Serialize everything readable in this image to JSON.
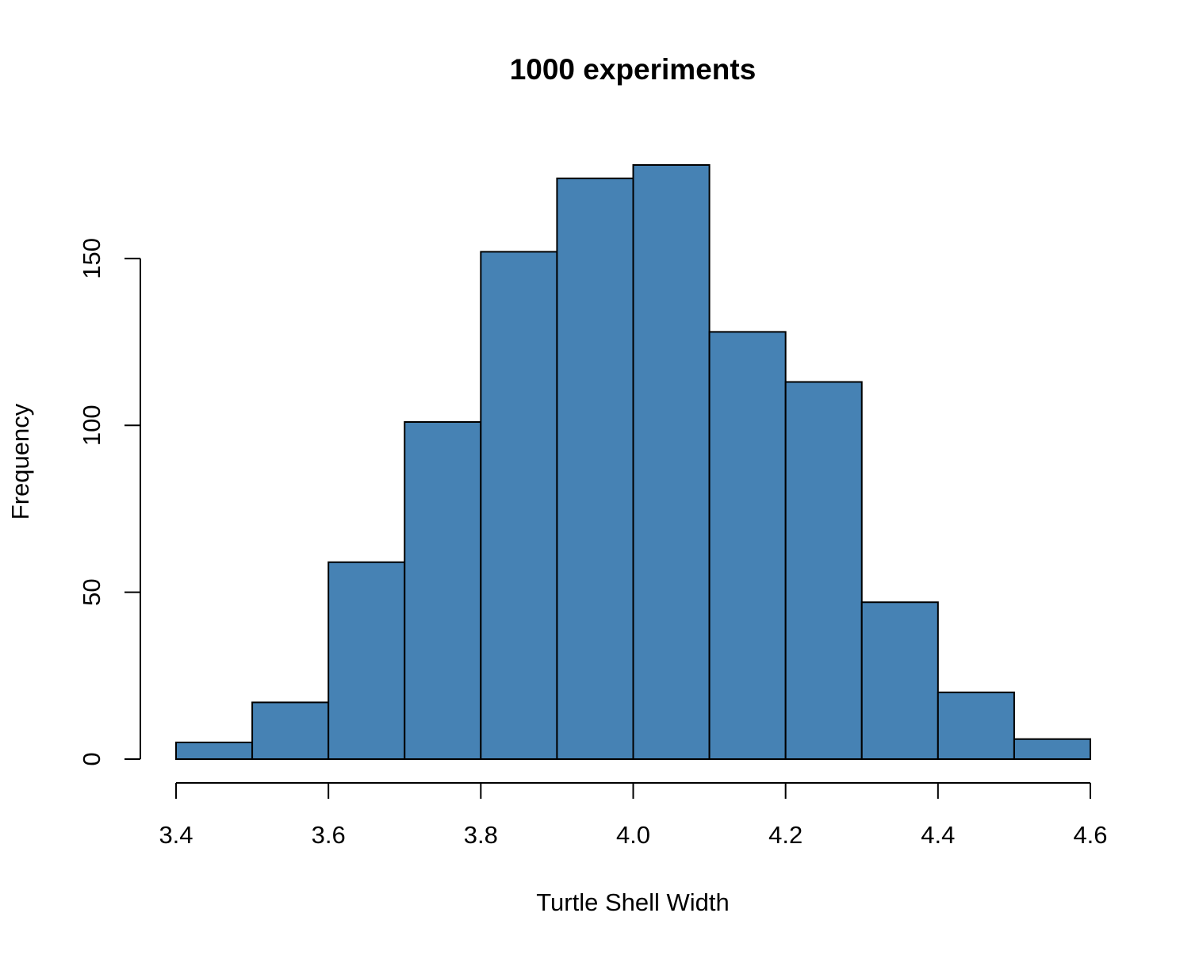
{
  "chart_data": {
    "type": "histogram",
    "title": "1000 experiments",
    "x_label": "Turtle Shell Width",
    "y_label": "Frequency",
    "bins": [
      3.4,
      3.5,
      3.6,
      3.7,
      3.8,
      3.9,
      4.0,
      4.1,
      4.2,
      4.3,
      4.4,
      4.5,
      4.6
    ],
    "values": [
      5,
      17,
      59,
      101,
      152,
      174,
      178,
      128,
      113,
      47,
      20,
      6
    ],
    "color": "#4682b4",
    "xlim": [
      3.4,
      4.6
    ],
    "xticks": [
      3.4,
      3.6,
      3.8,
      {
        "value": 4,
        "label": "4.0"
      },
      4.2,
      4.4,
      4.6
    ],
    "ylim": [
      0,
      178
    ],
    "yticks": [
      0,
      50,
      100,
      150
    ]
  }
}
